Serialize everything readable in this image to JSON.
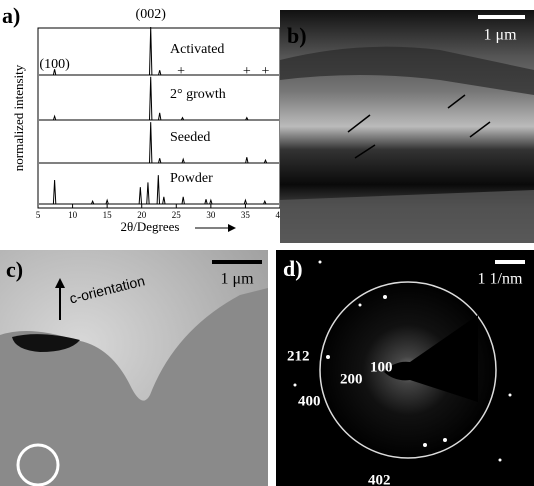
{
  "chart_data": {
    "type": "line",
    "panel_label": "a)",
    "xlabel": "2θ/Degrees",
    "ylabel": "normalized intensity",
    "xlim": [
      5,
      40
    ],
    "xticks": [
      5,
      10,
      15,
      20,
      25,
      30,
      35,
      40
    ],
    "peak_labels": [
      {
        "label": "(100)",
        "x": 7.4
      },
      {
        "label": "(002)",
        "x": 21.3
      }
    ],
    "markers": {
      "label": "+",
      "x": [
        25.7,
        35.2,
        37.9
      ]
    },
    "series": [
      {
        "name": "Activated",
        "color": "#000000",
        "x": [
          7.4,
          21.3,
          22.6
        ],
        "values": [
          0.12,
          1.0,
          0.1
        ]
      },
      {
        "name": "2° growth",
        "color": "#000000",
        "x": [
          7.4,
          21.3,
          22.6,
          25.9,
          35.2
        ],
        "values": [
          0.08,
          0.9,
          0.15,
          0.05,
          0.05
        ]
      },
      {
        "name": "Seeded",
        "color": "#000000",
        "x": [
          21.3,
          22.6,
          26.0,
          35.2,
          37.9
        ],
        "values": [
          0.85,
          0.1,
          0.08,
          0.12,
          0.06
        ]
      },
      {
        "name": "Powder",
        "color": "#000000",
        "x": [
          7.4,
          12.9,
          15.0,
          19.8,
          20.9,
          22.4,
          23.2,
          26.0,
          29.3,
          30.0,
          35.0,
          37.8
        ],
        "values": [
          0.5,
          0.06,
          0.08,
          0.35,
          0.45,
          0.6,
          0.15,
          0.15,
          0.1,
          0.08,
          0.08,
          0.06
        ]
      }
    ]
  },
  "images": [
    {
      "label": "b)",
      "scale": "1 μm"
    },
    {
      "label": "c)",
      "scale": "1 μm",
      "annotation": "c-orientation"
    },
    {
      "label": "d)",
      "scale": "1 1/nm",
      "spots": [
        "212",
        "200",
        "100",
        "400",
        "402"
      ]
    }
  ]
}
